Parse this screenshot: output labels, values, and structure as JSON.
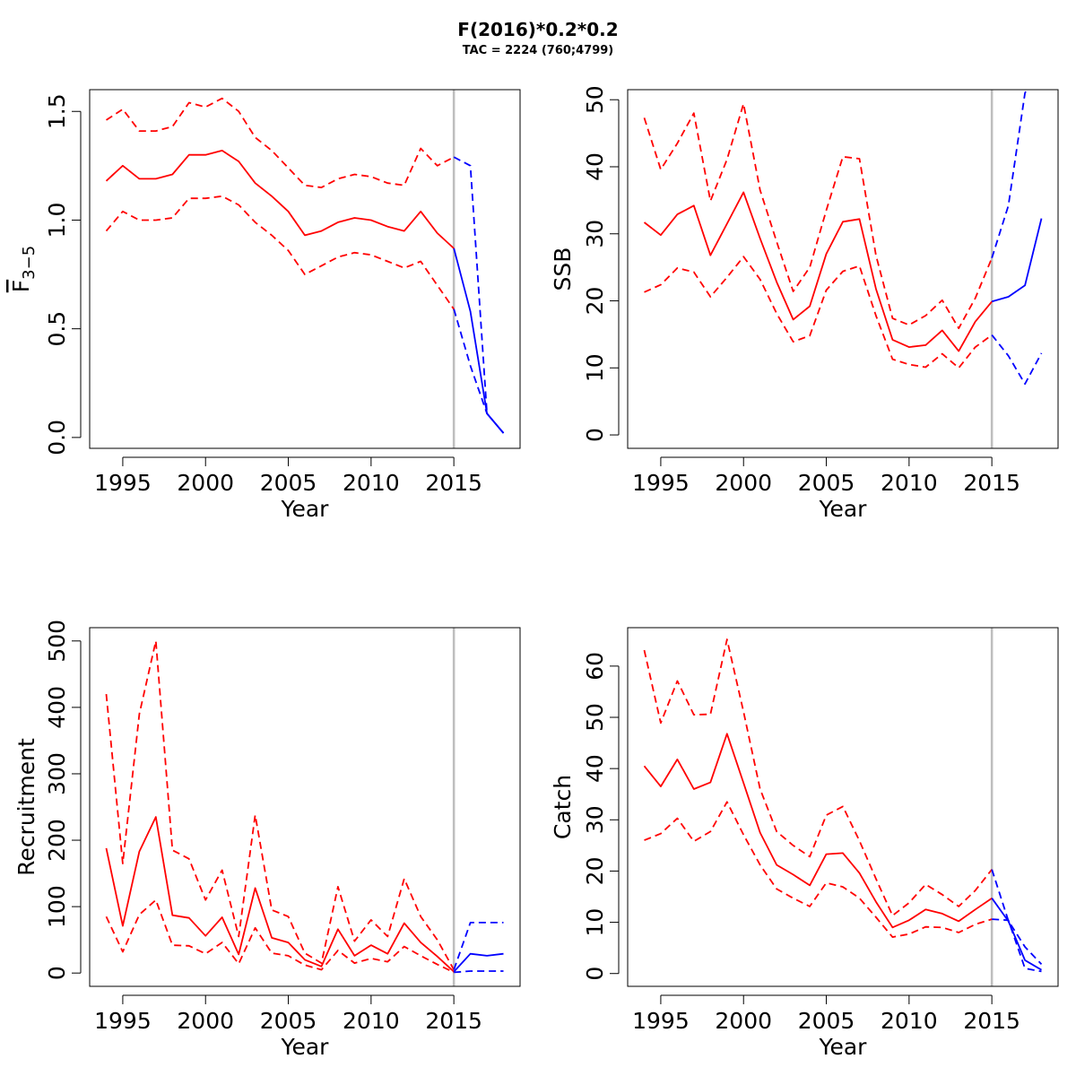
{
  "title": "F(2016)*0.2*0.2",
  "subtitle": "TAC = 2224 (760;4799)",
  "colors": {
    "historical": "#ff0000",
    "projection": "#0000ff",
    "divider": "#bebebe",
    "frame": "#000000"
  },
  "chart_data": [
    {
      "type": "line",
      "id": "fbar",
      "ylabel": "F",
      "ylabel_overline": true,
      "ylabel_subscript": "3−5",
      "xlabel": "Year",
      "xlim": [
        1993,
        2019
      ],
      "ylim": [
        -0.05,
        1.6
      ],
      "xticks": [
        1995,
        2000,
        2005,
        2010,
        2015
      ],
      "yticks": [
        0.0,
        0.5,
        1.0,
        1.5
      ],
      "ytick_labels": [
        "0.0",
        "0.5",
        "1.0",
        "1.5"
      ],
      "divider_x": 2015,
      "series": [
        {
          "role": "historical-median",
          "style": "solid",
          "color": "#ff0000",
          "x": [
            1994,
            1995,
            1996,
            1997,
            1998,
            1999,
            2000,
            2001,
            2002,
            2003,
            2004,
            2005,
            2006,
            2007,
            2008,
            2009,
            2010,
            2011,
            2012,
            2013,
            2014,
            2015
          ],
          "y": [
            1.18,
            1.25,
            1.19,
            1.19,
            1.21,
            1.3,
            1.3,
            1.32,
            1.27,
            1.17,
            1.11,
            1.04,
            0.93,
            0.95,
            0.99,
            1.01,
            1.0,
            0.97,
            0.95,
            1.04,
            0.94,
            0.87
          ]
        },
        {
          "role": "historical-upper",
          "style": "dashed",
          "color": "#ff0000",
          "x": [
            1994,
            1995,
            1996,
            1997,
            1998,
            1999,
            2000,
            2001,
            2002,
            2003,
            2004,
            2005,
            2006,
            2007,
            2008,
            2009,
            2010,
            2011,
            2012,
            2013,
            2014,
            2015
          ],
          "y": [
            1.46,
            1.51,
            1.41,
            1.41,
            1.43,
            1.54,
            1.52,
            1.56,
            1.5,
            1.38,
            1.32,
            1.24,
            1.16,
            1.15,
            1.19,
            1.21,
            1.2,
            1.17,
            1.16,
            1.33,
            1.25,
            1.29
          ]
        },
        {
          "role": "historical-lower",
          "style": "dashed",
          "color": "#ff0000",
          "x": [
            1994,
            1995,
            1996,
            1997,
            1998,
            1999,
            2000,
            2001,
            2002,
            2003,
            2004,
            2005,
            2006,
            2007,
            2008,
            2009,
            2010,
            2011,
            2012,
            2013,
            2014,
            2015
          ],
          "y": [
            0.95,
            1.04,
            1.0,
            1.0,
            1.01,
            1.1,
            1.1,
            1.11,
            1.07,
            0.99,
            0.93,
            0.86,
            0.75,
            0.79,
            0.83,
            0.85,
            0.84,
            0.81,
            0.78,
            0.81,
            0.7,
            0.59
          ]
        },
        {
          "role": "projection-median",
          "style": "solid",
          "color": "#0000ff",
          "x": [
            2015,
            2016,
            2017,
            2018
          ],
          "y": [
            0.87,
            0.58,
            0.11,
            0.02
          ]
        },
        {
          "role": "projection-upper",
          "style": "dashed",
          "color": "#0000ff",
          "x": [
            2015,
            2016,
            2017,
            2018
          ],
          "y": [
            1.29,
            1.25,
            0.11,
            0.02
          ]
        },
        {
          "role": "projection-lower",
          "style": "dashed",
          "color": "#0000ff",
          "x": [
            2015,
            2016,
            2017,
            2018
          ],
          "y": [
            0.59,
            0.33,
            0.11,
            0.02
          ]
        }
      ]
    },
    {
      "type": "line",
      "id": "ssb",
      "ylabel": "SSB",
      "xlabel": "Year",
      "xlim": [
        1993,
        2019
      ],
      "ylim": [
        -2,
        51.5
      ],
      "xticks": [
        1995,
        2000,
        2005,
        2010,
        2015
      ],
      "yticks": [
        0,
        10,
        20,
        30,
        40,
        50
      ],
      "ytick_labels": [
        "0",
        "10",
        "20",
        "30",
        "40",
        "50"
      ],
      "divider_x": 2015,
      "series": [
        {
          "role": "historical-median",
          "style": "solid",
          "color": "#ff0000",
          "x": [
            1994,
            1995,
            1996,
            1997,
            1998,
            1999,
            2000,
            2001,
            2002,
            2003,
            2004,
            2005,
            2006,
            2007,
            2008,
            2009,
            2010,
            2011,
            2012,
            2013,
            2014,
            2015
          ],
          "y": [
            31.7,
            29.8,
            32.9,
            34.2,
            26.8,
            31.5,
            36.2,
            29.3,
            22.8,
            17.2,
            19.2,
            27.0,
            31.8,
            32.2,
            21.8,
            14.2,
            13.1,
            13.4,
            15.6,
            12.5,
            16.9,
            19.9
          ]
        },
        {
          "role": "historical-upper",
          "style": "dashed",
          "color": "#ff0000",
          "x": [
            1994,
            1995,
            1996,
            1997,
            1998,
            1999,
            2000,
            2001,
            2002,
            2003,
            2004,
            2005,
            2006,
            2007,
            2008,
            2009,
            2010,
            2011,
            2012,
            2013,
            2014,
            2015
          ],
          "y": [
            47.3,
            39.6,
            43.5,
            48.0,
            34.9,
            41.1,
            49.4,
            36.5,
            28.8,
            21.4,
            25.0,
            33.5,
            41.5,
            41.2,
            26.8,
            17.4,
            16.4,
            17.8,
            20.1,
            15.9,
            20.4,
            26.4
          ]
        },
        {
          "role": "historical-lower",
          "style": "dashed",
          "color": "#ff0000",
          "x": [
            1994,
            1995,
            1996,
            1997,
            1998,
            1999,
            2000,
            2001,
            2002,
            2003,
            2004,
            2005,
            2006,
            2007,
            2008,
            2009,
            2010,
            2011,
            2012,
            2013,
            2014,
            2015
          ],
          "y": [
            21.3,
            22.4,
            24.9,
            24.3,
            20.6,
            23.5,
            26.6,
            23.2,
            18.1,
            13.9,
            14.8,
            21.6,
            24.4,
            25.2,
            17.8,
            11.3,
            10.5,
            10.1,
            12.1,
            10.0,
            13.1,
            14.9
          ]
        },
        {
          "role": "projection-median",
          "style": "solid",
          "color": "#0000ff",
          "x": [
            2015,
            2016,
            2017,
            2018
          ],
          "y": [
            19.9,
            20.6,
            22.3,
            32.3
          ]
        },
        {
          "role": "projection-upper",
          "style": "dashed",
          "color": "#0000ff",
          "x": [
            2015,
            2016,
            2017,
            2018
          ],
          "y": [
            26.4,
            34.2,
            51.0,
            55.0
          ]
        },
        {
          "role": "projection-lower",
          "style": "dashed",
          "color": "#0000ff",
          "x": [
            2015,
            2016,
            2017,
            2018
          ],
          "y": [
            14.9,
            11.8,
            7.6,
            12.2
          ]
        }
      ]
    },
    {
      "type": "line",
      "id": "recruitment",
      "ylabel": "Recruitment",
      "xlabel": "Year",
      "xlim": [
        1993,
        2019
      ],
      "ylim": [
        -20,
        520
      ],
      "xticks": [
        1995,
        2000,
        2005,
        2010,
        2015
      ],
      "yticks": [
        0,
        100,
        200,
        300,
        400,
        500
      ],
      "ytick_labels": [
        "0",
        "100",
        "200",
        "300",
        "400",
        "500"
      ],
      "divider_x": 2015,
      "series": [
        {
          "role": "historical-median",
          "style": "solid",
          "color": "#ff0000",
          "x": [
            1994,
            1995,
            1996,
            1997,
            1998,
            1999,
            2000,
            2001,
            2002,
            2003,
            2004,
            2005,
            2006,
            2007,
            2008,
            2009,
            2010,
            2011,
            2012,
            2013,
            2014,
            2015
          ],
          "y": [
            188,
            71,
            183,
            235,
            87,
            83,
            56,
            84,
            28,
            128,
            53,
            46,
            20,
            10,
            66,
            26,
            42,
            29,
            75,
            46,
            25,
            2
          ]
        },
        {
          "role": "historical-upper",
          "style": "dashed",
          "color": "#ff0000",
          "x": [
            1994,
            1995,
            1996,
            1997,
            1998,
            1999,
            2000,
            2001,
            2002,
            2003,
            2004,
            2005,
            2006,
            2007,
            2008,
            2009,
            2010,
            2011,
            2012,
            2013,
            2014,
            2015
          ],
          "y": [
            420,
            165,
            390,
            500,
            185,
            172,
            110,
            155,
            55,
            238,
            95,
            85,
            30,
            15,
            130,
            48,
            80,
            55,
            142,
            85,
            50,
            5
          ]
        },
        {
          "role": "historical-lower",
          "style": "dashed",
          "color": "#ff0000",
          "x": [
            1994,
            1995,
            1996,
            1997,
            1998,
            1999,
            2000,
            2001,
            2002,
            2003,
            2004,
            2005,
            2006,
            2007,
            2008,
            2009,
            2010,
            2011,
            2012,
            2013,
            2014,
            2015
          ],
          "y": [
            85,
            32,
            88,
            110,
            42,
            41,
            29,
            46,
            14,
            68,
            30,
            26,
            12,
            5,
            34,
            15,
            22,
            17,
            40,
            26,
            13,
            1
          ]
        },
        {
          "role": "projection-median",
          "style": "solid",
          "color": "#0000ff",
          "x": [
            2015,
            2016,
            2017,
            2018
          ],
          "y": [
            2,
            29,
            26,
            29
          ]
        },
        {
          "role": "projection-upper",
          "style": "dashed",
          "color": "#0000ff",
          "x": [
            2015,
            2016,
            2017,
            2018
          ],
          "y": [
            5,
            76,
            76,
            76
          ]
        },
        {
          "role": "projection-lower",
          "style": "dashed",
          "color": "#0000ff",
          "x": [
            2015,
            2016,
            2017,
            2018
          ],
          "y": [
            1,
            3,
            3,
            3
          ]
        }
      ]
    },
    {
      "type": "line",
      "id": "catch",
      "ylabel": "Catch",
      "xlabel": "Year",
      "xlim": [
        1993,
        2019
      ],
      "ylim": [
        -2.5,
        67.5
      ],
      "xticks": [
        1995,
        2000,
        2005,
        2010,
        2015
      ],
      "yticks": [
        0,
        10,
        20,
        30,
        40,
        50,
        60
      ],
      "ytick_labels": [
        "0",
        "10",
        "20",
        "30",
        "40",
        "50",
        "60"
      ],
      "divider_x": 2015,
      "series": [
        {
          "role": "historical-median",
          "style": "solid",
          "color": "#ff0000",
          "x": [
            1994,
            1995,
            1996,
            1997,
            1998,
            1999,
            2000,
            2001,
            2002,
            2003,
            2004,
            2005,
            2006,
            2007,
            2008,
            2009,
            2010,
            2011,
            2012,
            2013,
            2014,
            2015
          ],
          "y": [
            40.5,
            36.5,
            41.8,
            36.0,
            37.3,
            46.8,
            37.2,
            27.5,
            21.2,
            19.3,
            17.2,
            23.3,
            23.5,
            19.6,
            14.0,
            9.0,
            10.4,
            12.5,
            11.7,
            10.2,
            12.5,
            14.7
          ]
        },
        {
          "role": "historical-upper",
          "style": "dashed",
          "color": "#ff0000",
          "x": [
            1994,
            1995,
            1996,
            1997,
            1998,
            1999,
            2000,
            2001,
            2002,
            2003,
            2004,
            2005,
            2006,
            2007,
            2008,
            2009,
            2010,
            2011,
            2012,
            2013,
            2014,
            2015
          ],
          "y": [
            63.1,
            48.9,
            57.1,
            50.5,
            50.6,
            65.2,
            51.1,
            36.0,
            27.7,
            25.0,
            22.8,
            30.9,
            32.6,
            25.9,
            18.5,
            11.3,
            13.8,
            17.4,
            15.4,
            13.1,
            16.2,
            20.3
          ]
        },
        {
          "role": "historical-lower",
          "style": "dashed",
          "color": "#ff0000",
          "x": [
            1994,
            1995,
            1996,
            1997,
            1998,
            1999,
            2000,
            2001,
            2002,
            2003,
            2004,
            2005,
            2006,
            2007,
            2008,
            2009,
            2010,
            2011,
            2012,
            2013,
            2014,
            2015
          ],
          "y": [
            26.0,
            27.3,
            30.3,
            25.8,
            27.7,
            33.5,
            27.1,
            21.2,
            16.5,
            14.7,
            13.1,
            17.7,
            16.9,
            14.7,
            11.0,
            7.1,
            7.7,
            9.1,
            9.0,
            8.0,
            9.6,
            10.6
          ]
        },
        {
          "role": "projection-median",
          "style": "solid",
          "color": "#0000ff",
          "x": [
            2015,
            2016,
            2017,
            2018
          ],
          "y": [
            14.7,
            10.2,
            2.6,
            0.7
          ]
        },
        {
          "role": "projection-upper",
          "style": "dashed",
          "color": "#0000ff",
          "x": [
            2015,
            2016,
            2017,
            2018
          ],
          "y": [
            20.3,
            10.3,
            5.2,
            1.8
          ]
        },
        {
          "role": "projection-lower",
          "style": "dashed",
          "color": "#0000ff",
          "x": [
            2015,
            2016,
            2017,
            2018
          ],
          "y": [
            10.6,
            10.4,
            1.0,
            0.4
          ]
        }
      ]
    }
  ]
}
